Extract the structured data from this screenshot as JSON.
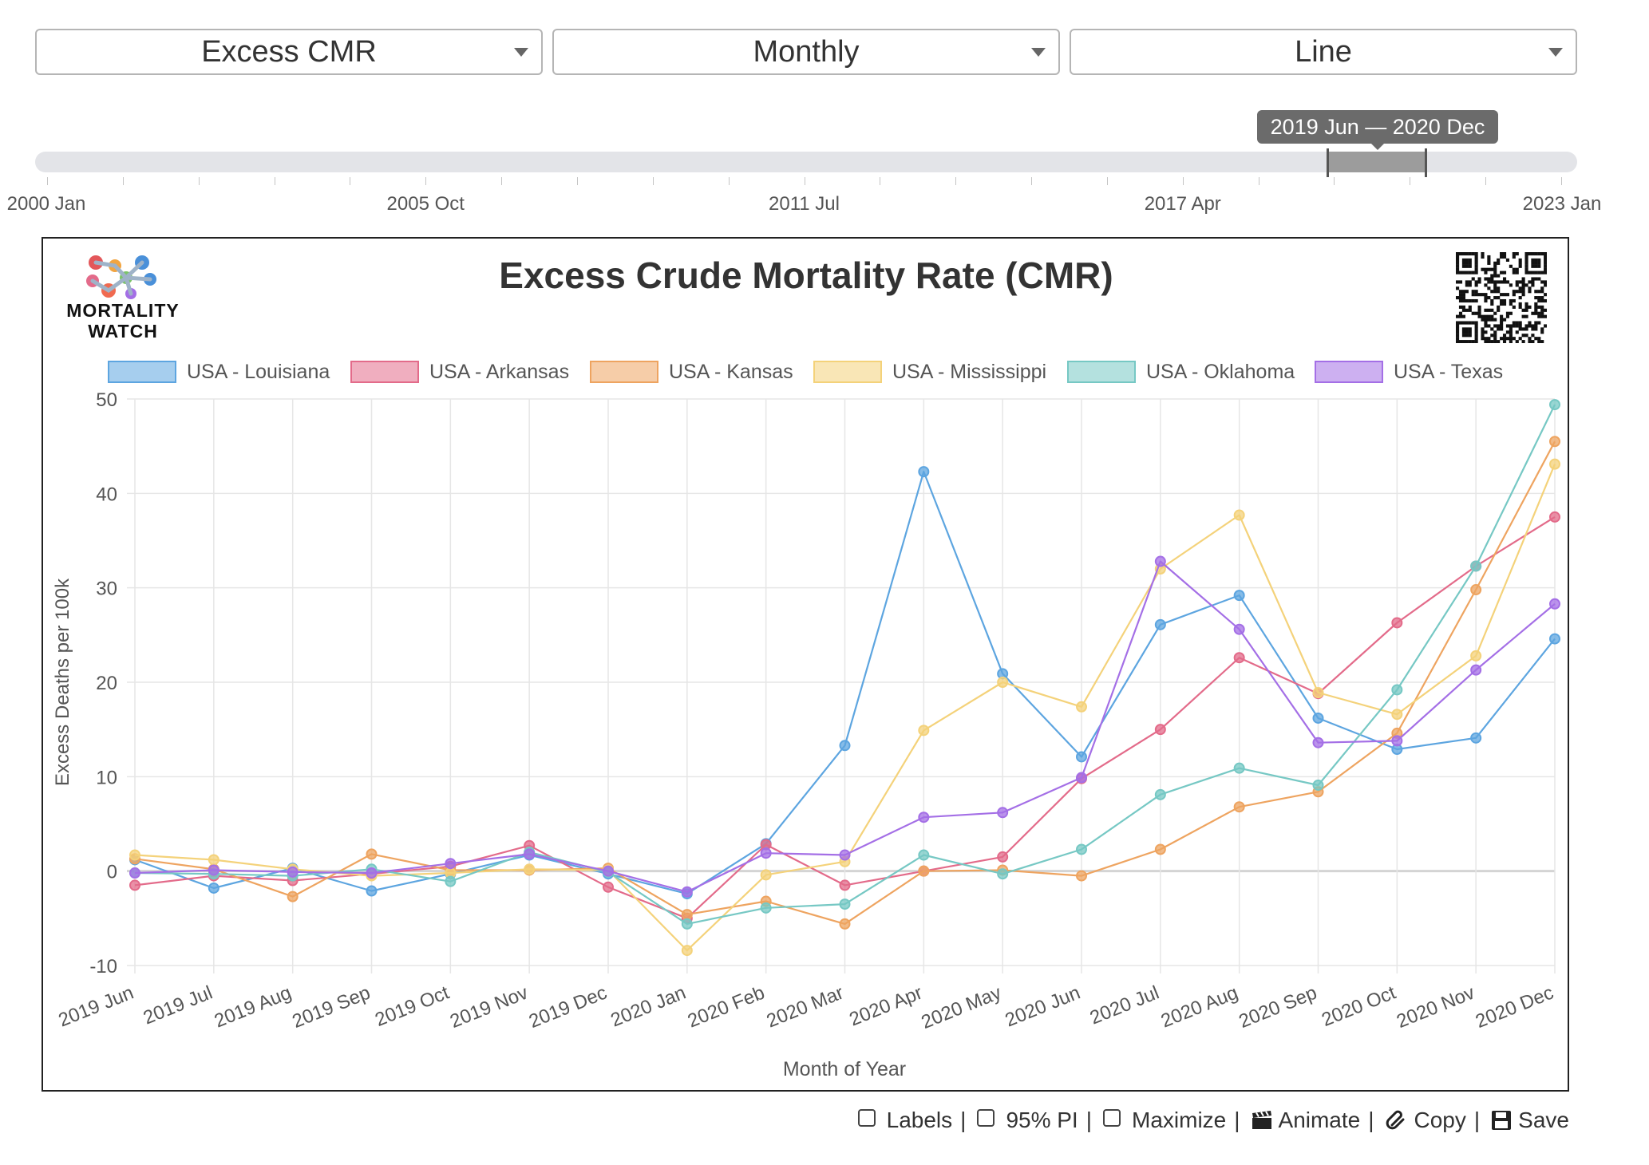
{
  "controls": {
    "metric": "Excess CMR",
    "period": "Monthly",
    "chart_type": "Line"
  },
  "slider": {
    "range_label": "2019 Jun — 2020 Dec",
    "tick_labels": [
      "2000 Jan",
      "2005 Oct",
      "2011 Jul",
      "2017 Apr",
      "2023 Jan"
    ]
  },
  "logo": {
    "line1": "MORTALITY",
    "line2": "WATCH"
  },
  "toolbar": {
    "labels": "Labels",
    "pi": "95% PI",
    "maximize": "Maximize",
    "animate": "Animate",
    "copy": "Copy",
    "save": "Save",
    "separator": "|"
  },
  "colors": {
    "louisiana": "#5da5e0",
    "arkansas": "#e36b8a",
    "kansas": "#eea460",
    "mississippi": "#f4d27a",
    "oklahoma": "#76c8c4",
    "texas": "#a46fe6"
  },
  "chart_data": {
    "type": "line",
    "title": "Excess Crude Mortality Rate (CMR)",
    "xlabel": "Month of Year",
    "ylabel": "Excess Deaths per 100k",
    "ylim": [
      -10,
      50
    ],
    "yticks": [
      -10,
      0,
      10,
      20,
      30,
      40,
      50
    ],
    "grid": true,
    "legend_position": "top",
    "categories": [
      "2019 Jun",
      "2019 Jul",
      "2019 Aug",
      "2019 Sep",
      "2019 Oct",
      "2019 Nov",
      "2019 Dec",
      "2020 Jan",
      "2020 Feb",
      "2020 Mar",
      "2020 Apr",
      "2020 May",
      "2020 Jun",
      "2020 Jul",
      "2020 Aug",
      "2020 Sep",
      "2020 Oct",
      "2020 Nov",
      "2020 Dec"
    ],
    "series": [
      {
        "name": "USA - Louisiana",
        "color": "#5da5e0",
        "values": [
          1.2,
          -1.8,
          0.3,
          -2.1,
          -0.3,
          1.7,
          -0.3,
          -2.4,
          2.9,
          13.3,
          42.3,
          20.9,
          12.1,
          26.1,
          29.2,
          16.2,
          12.9,
          14.1,
          24.6
        ]
      },
      {
        "name": "USA - Arkansas",
        "color": "#e36b8a",
        "values": [
          -1.5,
          -0.5,
          -1.0,
          -0.3,
          0.5,
          2.7,
          -1.7,
          -5.0,
          2.8,
          -1.5,
          0.0,
          1.5,
          9.8,
          15.0,
          22.6,
          18.8,
          26.3,
          32.3,
          37.5
        ]
      },
      {
        "name": "USA - Kansas",
        "color": "#eea460",
        "values": [
          1.3,
          0.2,
          -2.7,
          1.8,
          0.1,
          0.1,
          0.3,
          -4.6,
          -3.2,
          -5.6,
          0.0,
          0.1,
          -0.5,
          2.3,
          6.8,
          8.4,
          14.6,
          29.8,
          45.5
        ]
      },
      {
        "name": "USA - Mississippi",
        "color": "#f4d27a",
        "values": [
          1.7,
          1.2,
          0.2,
          -0.5,
          -0.2,
          0.2,
          0.1,
          -8.4,
          -0.4,
          1.0,
          14.9,
          20.0,
          17.4,
          32.0,
          37.7,
          18.9,
          16.6,
          22.8,
          43.1
        ]
      },
      {
        "name": "USA - Oklahoma",
        "color": "#76c8c4",
        "values": [
          -0.2,
          -0.3,
          -0.5,
          0.2,
          -1.1,
          2.0,
          -0.1,
          -5.6,
          -3.9,
          -3.5,
          1.7,
          -0.3,
          2.3,
          8.1,
          10.9,
          9.1,
          19.2,
          32.3,
          49.4
        ]
      },
      {
        "name": "USA - Texas",
        "color": "#a46fe6",
        "values": [
          -0.2,
          0.1,
          -0.1,
          -0.2,
          0.8,
          1.8,
          0.0,
          -2.2,
          1.9,
          1.7,
          5.7,
          6.2,
          9.9,
          32.8,
          25.6,
          13.6,
          13.8,
          21.3,
          28.3
        ]
      }
    ]
  }
}
